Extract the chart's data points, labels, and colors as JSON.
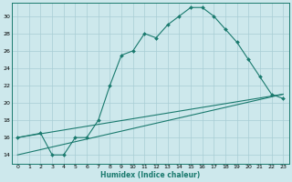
{
  "xlabel": "Humidex (Indice chaleur)",
  "bg_color": "#cde8ec",
  "grid_color": "#a8cdd4",
  "line_color": "#1a7a6e",
  "xlim": [
    -0.5,
    23.5
  ],
  "ylim": [
    13.0,
    31.5
  ],
  "xticks": [
    0,
    1,
    2,
    3,
    4,
    5,
    6,
    7,
    8,
    9,
    10,
    11,
    12,
    13,
    14,
    15,
    16,
    17,
    18,
    19,
    20,
    21,
    22,
    23
  ],
  "yticks": [
    14,
    16,
    18,
    20,
    22,
    24,
    26,
    28,
    30
  ],
  "series1_x": [
    0,
    2,
    3,
    4,
    5,
    6,
    7,
    8,
    9,
    10,
    11,
    12,
    13,
    14,
    15,
    16,
    17,
    18,
    19,
    20,
    21,
    22,
    23
  ],
  "series1_y": [
    16,
    16.5,
    14,
    14,
    16,
    16,
    18,
    22,
    25.5,
    26,
    28,
    27.5,
    29,
    30,
    31,
    31,
    30,
    28.5,
    27,
    25,
    23,
    21,
    20.5
  ],
  "line1_x": [
    0,
    23
  ],
  "line1_y": [
    16,
    21.0
  ],
  "line2_x": [
    0,
    23
  ],
  "line2_y": [
    14,
    21.0
  ]
}
